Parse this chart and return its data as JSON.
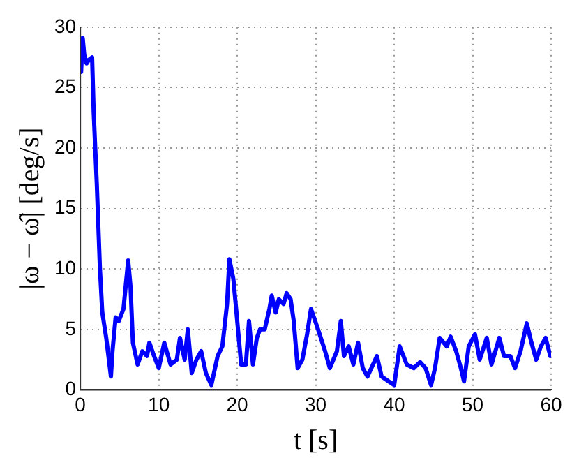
{
  "chart_data": {
    "type": "line",
    "xlabel": "t [s]",
    "ylabel": "|ω − ω̂| [deg/s]",
    "xlim": [
      0,
      60
    ],
    "ylim": [
      0,
      30
    ],
    "xticks": [
      0,
      10,
      20,
      30,
      40,
      50,
      60
    ],
    "yticks": [
      0,
      5,
      10,
      15,
      20,
      25,
      30
    ],
    "grid": true,
    "legend": false,
    "marker": "none",
    "line_style": "solid",
    "series": [
      {
        "color": "#0000ff",
        "x": [
          0.1,
          0.3,
          0.5,
          0.8,
          1.1,
          1.5,
          1.7,
          2.1,
          2.5,
          2.8,
          3.3,
          3.9,
          4.1,
          4.5,
          4.9,
          5.5,
          6.1,
          6.4,
          6.7,
          7.3,
          7.9,
          8.5,
          8.8,
          9.4,
          10,
          10.7,
          11.5,
          12.3,
          12.7,
          13.3,
          13.7,
          14.2,
          14.8,
          15.4,
          16,
          16.7,
          17.5,
          18.1,
          18.7,
          19,
          19.5,
          19.9,
          20.5,
          21.1,
          21.5,
          22,
          22.5,
          22.9,
          23.5,
          24.1,
          24.4,
          24.9,
          25.3,
          25.9,
          26.3,
          26.8,
          27.2,
          27.7,
          28.3,
          28.9,
          29.4,
          30.3,
          31.2,
          31.8,
          32.7,
          33.2,
          33.6,
          34.2,
          34.8,
          35.4,
          36,
          36.6,
          37.8,
          38.4,
          39.3,
          40,
          40.7,
          41.6,
          42.5,
          43.3,
          44,
          44.7,
          45.2,
          45.8,
          46.7,
          47.2,
          47.9,
          48.5,
          48.9,
          49.5,
          50.3,
          50.9,
          51.8,
          52.4,
          53.4,
          54,
          54.8,
          55.4,
          56.1,
          56.9,
          57.5,
          58.1,
          58.7,
          59.3,
          59.9
        ],
        "values": [
          26.3,
          29.1,
          27.7,
          27,
          27.3,
          27.5,
          23,
          17,
          10,
          6.4,
          4.3,
          1.1,
          3.2,
          6,
          5.7,
          6.7,
          10.7,
          8.5,
          3.9,
          2.1,
          3.2,
          2.8,
          3.9,
          2.8,
          1.8,
          3.9,
          2.1,
          2.5,
          4.3,
          2.5,
          5,
          1.4,
          2.5,
          3.2,
          1.4,
          0.4,
          2.8,
          3.6,
          7.1,
          10.8,
          9.2,
          6.4,
          2.1,
          2.1,
          5.7,
          2.1,
          4.3,
          5,
          5,
          6.7,
          7.8,
          6.4,
          7.5,
          7.1,
          8,
          7.5,
          5.7,
          1.8,
          2.5,
          4.6,
          6.7,
          5,
          3.2,
          1.8,
          3.2,
          5.7,
          2.8,
          3.6,
          2.1,
          3.9,
          1.8,
          1.1,
          2.8,
          1.1,
          0.7,
          0.4,
          3.6,
          2.1,
          1.8,
          2.3,
          1.8,
          0.4,
          1.8,
          4.3,
          3.6,
          4.4,
          3.2,
          1.8,
          0.7,
          3.6,
          4.6,
          2.5,
          4.3,
          2.1,
          4.3,
          2.8,
          2.8,
          1.8,
          3.2,
          5.5,
          3.9,
          2.5,
          3.6,
          4.3,
          2.8
        ]
      }
    ]
  }
}
